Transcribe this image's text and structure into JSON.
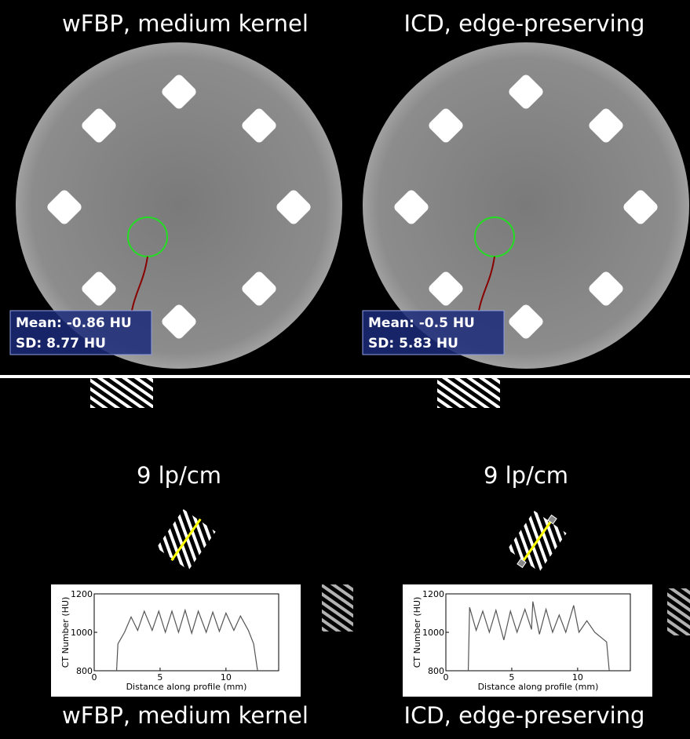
{
  "top": {
    "left": {
      "title": "wFBP, medium kernel",
      "mean": "Mean: -0.86 HU",
      "sd": "SD: 8.77 HU"
    },
    "right": {
      "title": "ICD, edge-preserving",
      "mean": "Mean: -0.5 HU",
      "sd": "SD: 5.83 HU"
    }
  },
  "bottom": {
    "left": {
      "resolution": "9 lp/cm",
      "title": "wFBP, medium kernel"
    },
    "right": {
      "resolution": "9 lp/cm",
      "title": "ICD, edge-preserving"
    }
  },
  "chart_data": [
    {
      "type": "line",
      "xlabel": "Distance along profile (mm)",
      "ylabel": "CT Number (HU)",
      "color": "#555555",
      "xlim": [
        0,
        14
      ],
      "ylim": [
        800,
        1200
      ],
      "xticks": [
        0,
        5,
        10
      ],
      "yticks": [
        800,
        1000,
        1200
      ],
      "x": [
        1.7,
        1.8,
        2.3,
        2.8,
        3.3,
        3.8,
        4.4,
        4.9,
        5.4,
        5.9,
        6.4,
        6.9,
        7.4,
        7.9,
        8.5,
        9.0,
        9.5,
        10.0,
        10.6,
        11.1,
        11.7,
        12.1,
        12.4
      ],
      "values": [
        800,
        940,
        1000,
        1080,
        1010,
        1110,
        1010,
        1110,
        1000,
        1110,
        1000,
        1115,
        995,
        1110,
        1000,
        1105,
        1005,
        1100,
        1010,
        1085,
        1010,
        940,
        800
      ]
    },
    {
      "type": "line",
      "xlabel": "Distance along profile (mm)",
      "ylabel": "CT Number (HU)",
      "color": "#555555",
      "xlim": [
        0,
        14
      ],
      "ylim": [
        800,
        1200
      ],
      "xticks": [
        0,
        5,
        10
      ],
      "yticks": [
        800,
        1000,
        1200
      ],
      "x": [
        1.7,
        1.8,
        2.3,
        2.8,
        3.3,
        3.8,
        4.4,
        4.9,
        5.4,
        6.0,
        6.5,
        6.6,
        7.1,
        7.6,
        8.1,
        8.6,
        9.1,
        9.7,
        10.1,
        10.7,
        11.3,
        12.2,
        12.4
      ],
      "values": [
        800,
        1130,
        1010,
        1110,
        1000,
        1115,
        960,
        1110,
        1000,
        1120,
        1015,
        1160,
        990,
        1120,
        1000,
        1090,
        1000,
        1140,
        1000,
        1060,
        1000,
        950,
        800
      ]
    }
  ]
}
